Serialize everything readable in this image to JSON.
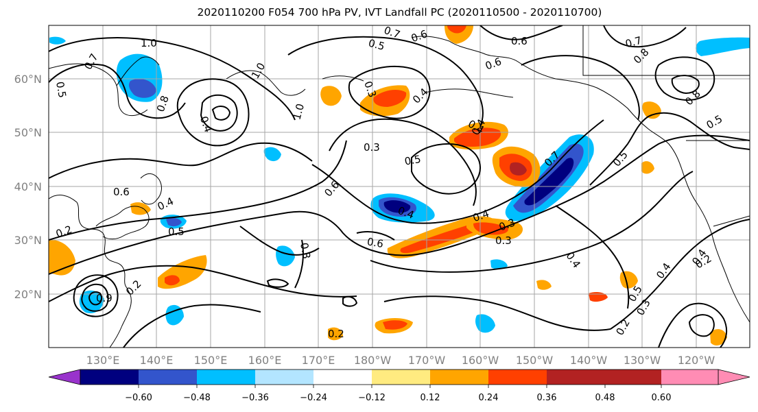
{
  "title": "2020110200 F054 700 hPa PV, IVT Landfall PC (2020110500 - 2020110700)",
  "lat_labels": [
    "60°N",
    "50°N",
    "40°N",
    "30°N",
    "20°N"
  ],
  "lon_labels": [
    "130°E",
    "140°E",
    "150°E",
    "160°E",
    "170°E",
    "180°W",
    "170°W",
    "160°W",
    "150°W",
    "140°W",
    "130°W",
    "120°W"
  ],
  "colorbar": {
    "colors": [
      "#9933cc",
      "#00007f",
      "#3355cc",
      "#00bfff",
      "#b3e5ff",
      "#ffffff",
      "#ffeb80",
      "#ffa500",
      "#ff4000",
      "#b22222",
      "#ff8cb4"
    ],
    "ticks": [
      "−0.60",
      "−0.48",
      "−0.36",
      "−0.24",
      "−0.12",
      "0.12",
      "0.24",
      "0.36",
      "0.48",
      "0.60"
    ]
  },
  "contour_labels": [
    "1.0",
    "0.7",
    "0.5",
    "0.8",
    "0.4",
    "1.0",
    "1.0",
    "0.7",
    "0.5",
    "0.6",
    "0.3",
    "0.4",
    "0.6",
    "0.6",
    "0.4",
    "0.7",
    "0.8",
    "0.8",
    "0.5",
    "0.3",
    "0.5",
    "0.4",
    "0.6",
    "0.6",
    "0.4",
    "0.5",
    "0.4",
    "0.6",
    "0.7",
    "0.4",
    "0.3",
    "0.3",
    "0.5",
    "0.2",
    "0.4",
    "0.4",
    "0.5",
    "0.3",
    "0.2",
    "0.3",
    "0.4",
    "0.2",
    "0.2",
    "0.9",
    "0.2"
  ],
  "map_features": [
    "coastlines",
    "gridlines",
    "PV contours",
    "IVT shading"
  ]
}
